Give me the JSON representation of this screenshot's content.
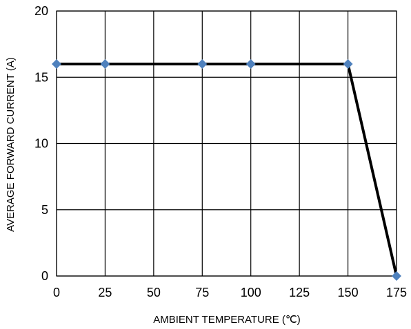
{
  "chart_data": {
    "type": "line",
    "title": "",
    "xlabel": "AMBIENT TEMPERATURE (℃)",
    "ylabel": "AVERAGE FORWARD CURRENT (A)",
    "xlim": [
      0,
      175
    ],
    "ylim": [
      0,
      20
    ],
    "xticks": [
      0,
      25,
      50,
      75,
      100,
      125,
      150,
      175
    ],
    "yticks": [
      0,
      5,
      10,
      15,
      20
    ],
    "grid": true,
    "legend": "none",
    "line_color": "#000000",
    "marker_color": "#4f81bd",
    "series": [
      {
        "points": [
          [
            0,
            16
          ],
          [
            25,
            16
          ],
          [
            75,
            16
          ],
          [
            100,
            16
          ],
          [
            150,
            16
          ],
          [
            175,
            0
          ]
        ]
      }
    ]
  }
}
